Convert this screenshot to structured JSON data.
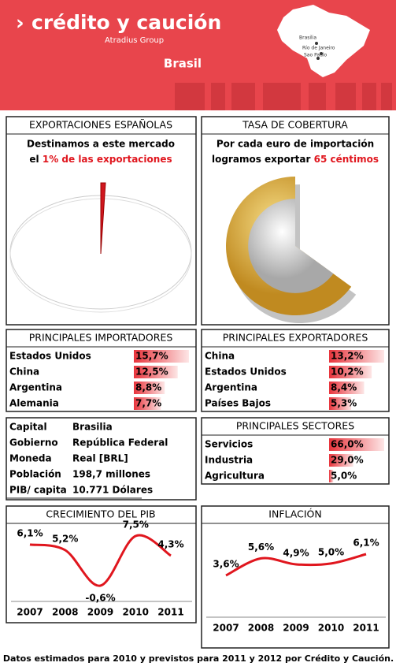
{
  "header": {
    "brand": "crédito y caución",
    "group": "Atradius Group",
    "country": "Brasil",
    "map_labels": [
      "Brasilia",
      "Río de Janeiro",
      "Sao Paulo"
    ]
  },
  "exportaciones": {
    "title": "EXPORTACIONES ESPAÑOLAS",
    "line1": "Destinamos a este mercado",
    "line2_start": "el",
    "value": 1,
    "value_label": "1%",
    "line2_end": "de las exportaciones"
  },
  "cobertura": {
    "title": "TASA DE COBERTURA",
    "line1": "Por cada euro de importación",
    "line2_start": "logramos exportar",
    "value": 65,
    "value_label": "65 céntimos"
  },
  "importadores": {
    "title": "PRINCIPALES IMPORTADORES",
    "rows": [
      {
        "name": "Estados Unidos",
        "value": 15.7,
        "label": "15,7%"
      },
      {
        "name": "China",
        "value": 12.5,
        "label": "12,5%"
      },
      {
        "name": "Argentina",
        "value": 8.8,
        "label": "8,8%"
      },
      {
        "name": "Alemania",
        "value": 7.7,
        "label": "7,7%"
      }
    ]
  },
  "exportadores": {
    "title": "PRINCIPALES EXPORTADORES",
    "rows": [
      {
        "name": "China",
        "value": 13.2,
        "label": "13,2%"
      },
      {
        "name": "Estados Unidos",
        "value": 10.2,
        "label": "10,2%"
      },
      {
        "name": "Argentina",
        "value": 8.4,
        "label": "8,4%"
      },
      {
        "name": "Países Bajos",
        "value": 5.3,
        "label": "5,3%"
      }
    ]
  },
  "info": {
    "rows": [
      [
        "Capital",
        "Brasilia"
      ],
      [
        "Gobierno",
        "República Federal"
      ],
      [
        "Moneda",
        "Real [BRL]"
      ],
      [
        "Población",
        "198,7 millones"
      ],
      [
        "PIB/ capita",
        "10.771 Dólares"
      ]
    ]
  },
  "sectores": {
    "title": "PRINCIPALES SECTORES",
    "rows": [
      {
        "name": "Servicios",
        "value": 66.0,
        "label": "66,0%"
      },
      {
        "name": "Industria",
        "value": 29.0,
        "label": "29,0%"
      },
      {
        "name": "Agricultura",
        "value": 5.0,
        "label": "5,0%"
      }
    ]
  },
  "pib": {
    "type": "line",
    "title": "CRECIMIENTO DEL PIB",
    "categories": [
      "2007",
      "2008",
      "2009",
      "2010",
      "2011"
    ],
    "values": [
      6.1,
      5.2,
      -0.6,
      7.5,
      4.3
    ],
    "value_labels": [
      "6,1%",
      "5,2%",
      "-0,6%",
      "7,5%",
      "4,3%"
    ],
    "color": "#e0161e"
  },
  "inflacion": {
    "type": "line",
    "title": "INFLACIÓN",
    "categories": [
      "2007",
      "2008",
      "2009",
      "2010",
      "2011"
    ],
    "values": [
      3.6,
      5.6,
      4.9,
      5.0,
      6.1
    ],
    "value_labels": [
      "3,6%",
      "5,6%",
      "4,9%",
      "5,0%",
      "6,1%"
    ],
    "color": "#e0161e"
  },
  "footer": "Datos estimados para 2010 y previstos para 2011  y 2012 por Crédito y Caución."
}
